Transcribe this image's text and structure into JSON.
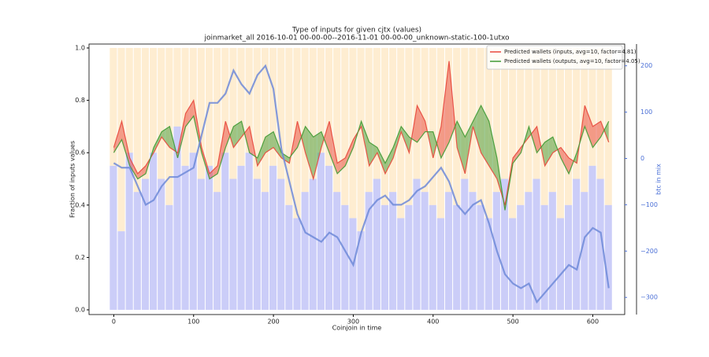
{
  "chart_data": {
    "type": "line",
    "title": "Type of inputs for given cjtx (values)",
    "subtitle": "joinmarket_all 2016-10-01 00-00-00--2016-11-01 00-00-00_unknown-static-100-1utxo",
    "xlabel": "Coinjoin in time",
    "ylabel": "Fraction of inputs values",
    "y2label": "btc in mix",
    "x": [
      0,
      10,
      20,
      30,
      40,
      50,
      60,
      70,
      80,
      90,
      100,
      110,
      120,
      130,
      140,
      150,
      160,
      170,
      180,
      190,
      200,
      210,
      220,
      230,
      240,
      250,
      260,
      270,
      280,
      290,
      300,
      310,
      320,
      330,
      340,
      350,
      360,
      370,
      380,
      390,
      400,
      410,
      420,
      430,
      440,
      450,
      460,
      470,
      480,
      490,
      500,
      510,
      520,
      530,
      540,
      550,
      560,
      570,
      580,
      590,
      600,
      610,
      620
    ],
    "series": [
      {
        "name": "Predicted wallets (inputs, avg=10, factor=4.81)",
        "color": "#e8473b",
        "axis": "y",
        "values": [
          0.62,
          0.72,
          0.58,
          0.52,
          0.55,
          0.6,
          0.66,
          0.62,
          0.6,
          0.75,
          0.8,
          0.62,
          0.52,
          0.55,
          0.72,
          0.62,
          0.66,
          0.7,
          0.55,
          0.6,
          0.62,
          0.58,
          0.56,
          0.72,
          0.6,
          0.5,
          0.62,
          0.72,
          0.56,
          0.58,
          0.65,
          0.7,
          0.55,
          0.6,
          0.52,
          0.58,
          0.68,
          0.6,
          0.78,
          0.72,
          0.58,
          0.7,
          0.95,
          0.62,
          0.52,
          0.7,
          0.6,
          0.55,
          0.5,
          0.4,
          0.58,
          0.62,
          0.66,
          0.7,
          0.55,
          0.6,
          0.62,
          0.58,
          0.56,
          0.78,
          0.7,
          0.72,
          0.64
        ]
      },
      {
        "name": "Predicted wallets (outputs, avg=10, factor=4.05)",
        "color": "#3f9a33",
        "axis": "y",
        "values": [
          0.6,
          0.65,
          0.55,
          0.5,
          0.52,
          0.62,
          0.68,
          0.7,
          0.58,
          0.7,
          0.74,
          0.6,
          0.5,
          0.52,
          0.62,
          0.7,
          0.72,
          0.6,
          0.58,
          0.66,
          0.68,
          0.6,
          0.58,
          0.62,
          0.7,
          0.66,
          0.68,
          0.6,
          0.52,
          0.55,
          0.62,
          0.72,
          0.64,
          0.62,
          0.56,
          0.62,
          0.7,
          0.66,
          0.64,
          0.68,
          0.68,
          0.58,
          0.64,
          0.72,
          0.66,
          0.72,
          0.78,
          0.72,
          0.58,
          0.38,
          0.56,
          0.6,
          0.7,
          0.6,
          0.64,
          0.66,
          0.58,
          0.52,
          0.6,
          0.7,
          0.62,
          0.66,
          0.72
        ]
      },
      {
        "color": "#6f8ad8",
        "axis": "y2",
        "values": [
          -10,
          -20,
          -20,
          -60,
          -100,
          -90,
          -60,
          -40,
          -40,
          -30,
          -20,
          50,
          120,
          120,
          140,
          190,
          160,
          140,
          180,
          200,
          150,
          20,
          -50,
          -120,
          -160,
          -170,
          -180,
          -160,
          -170,
          -200,
          -230,
          -160,
          -110,
          -90,
          -80,
          -100,
          -100,
          -90,
          -70,
          -60,
          -40,
          -20,
          -50,
          -100,
          -120,
          -100,
          -90,
          -140,
          -200,
          -250,
          -270,
          -280,
          -270,
          -310,
          -290,
          -270,
          -250,
          -230,
          -240,
          -170,
          -150,
          -160,
          -280
        ]
      }
    ],
    "bars": {
      "color": "#a9acf4",
      "rest_color": "#fde6bd",
      "values": [
        0.55,
        0.3,
        0.6,
        0.45,
        0.5,
        0.6,
        0.5,
        0.4,
        0.7,
        0.55,
        0.6,
        0.5,
        0.55,
        0.45,
        0.6,
        0.5,
        0.55,
        0.6,
        0.5,
        0.45,
        0.55,
        0.5,
        0.4,
        0.35,
        0.45,
        0.5,
        0.6,
        0.55,
        0.45,
        0.4,
        0.35,
        0.3,
        0.45,
        0.5,
        0.4,
        0.45,
        0.35,
        0.4,
        0.5,
        0.45,
        0.4,
        0.35,
        0.45,
        0.4,
        0.5,
        0.45,
        0.4,
        0.35,
        0.45,
        0.5,
        0.35,
        0.4,
        0.45,
        0.5,
        0.4,
        0.45,
        0.35,
        0.4,
        0.5,
        0.45,
        0.55,
        0.5,
        0.4
      ]
    },
    "xlim": [
      -31,
      640
    ],
    "ylim": [
      -0.018,
      1.015
    ],
    "y2lim": [
      -337,
      247
    ],
    "xticks": [
      0,
      100,
      200,
      300,
      400,
      500,
      600
    ],
    "yticks": [
      {
        "value": 0,
        "label": "0.0"
      },
      {
        "value": 0.2,
        "label": "0.2"
      },
      {
        "value": 0.4,
        "label": "0.4"
      },
      {
        "value": 0.6,
        "label": "0.6"
      },
      {
        "value": 0.8,
        "label": "0.8"
      },
      {
        "value": 1,
        "label": "1.0"
      }
    ],
    "y2ticks": [
      {
        "value": -300,
        "label": "−300"
      },
      {
        "value": -200,
        "label": "−200"
      },
      {
        "value": -100,
        "label": "−100"
      },
      0,
      100,
      200
    ],
    "y2color": "#4a6fd6",
    "legend": "upper right"
  }
}
